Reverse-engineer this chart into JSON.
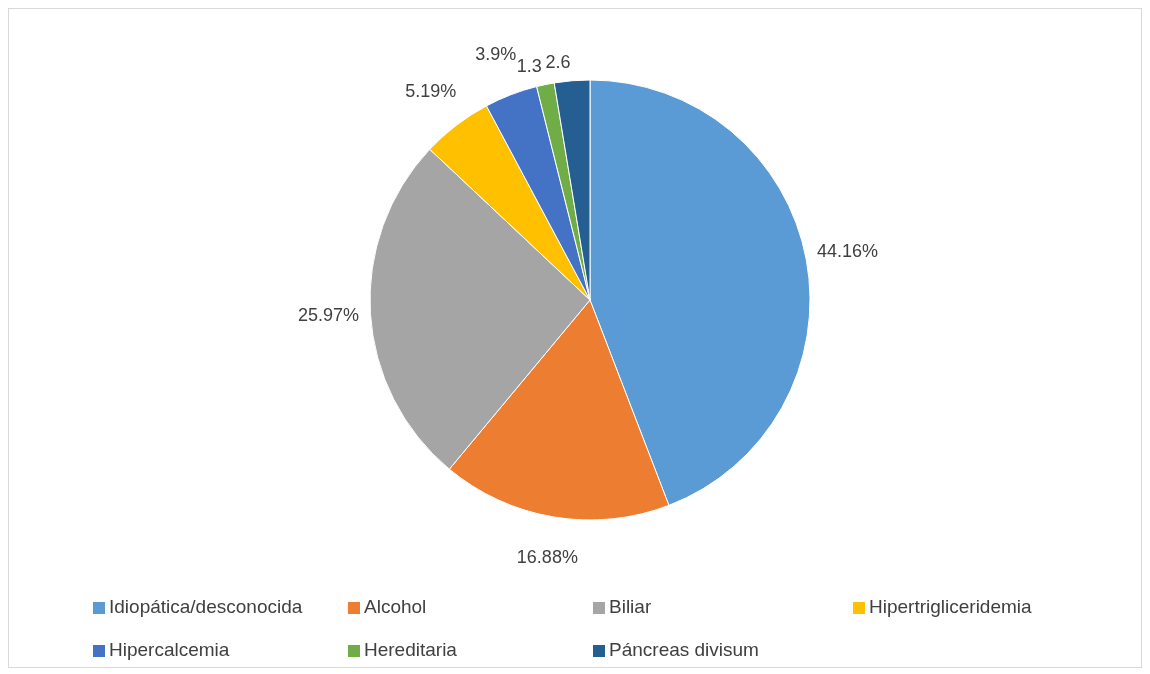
{
  "chart_data": {
    "type": "pie",
    "categories": [
      "Idiopática/desconocida",
      "Alcohol",
      "Biliar",
      "Hipertrigliceridemia",
      "Hipercalcemia",
      "Hereditaria",
      "Páncreas divisum"
    ],
    "values": [
      44.16,
      16.88,
      25.97,
      5.19,
      3.9,
      1.3,
      2.6
    ],
    "colors": [
      "#5b9bd5",
      "#ed7d31",
      "#a5a5a5",
      "#ffc000",
      "#4472c4",
      "#70ad47",
      "#255e91"
    ],
    "value_labels": [
      "44.16%",
      "16.88%",
      "25.97%",
      "5.19%",
      "3.9%",
      "1.3",
      "2.6"
    ],
    "legend": "bottom"
  }
}
